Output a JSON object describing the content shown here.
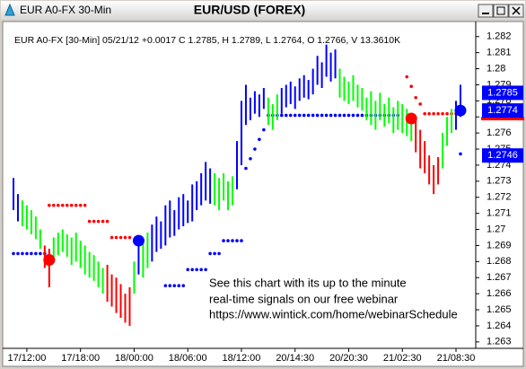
{
  "window_title": "EUR A0-FX 30-Min",
  "chart_data": {
    "type": "range",
    "title": "EUR/USD (FOREX)",
    "subtitle": "EUR A0-FX [30-Min] 05/21/12 +0.0017 C 1.2785, H 1.2789, L 1.2764, O 1.2766, V 13.3610K",
    "annotation": [
      "See this chart with its up to the minute",
      "real-time signals on our free webinar",
      "https://www.wintick.com/home/webinarSchedule"
    ],
    "categories": [
      null,
      null,
      null,
      "17/12:00",
      null,
      null,
      null,
      null,
      null,
      null,
      null,
      null,
      null,
      null,
      null,
      "17/18:00",
      null,
      null,
      null,
      null,
      null,
      null,
      null,
      null,
      null,
      null,
      null,
      "18/00:00",
      null,
      null,
      null,
      null,
      null,
      null,
      null,
      null,
      null,
      null,
      null,
      "18/06:00",
      null,
      null,
      null,
      null,
      null,
      null,
      null,
      null,
      null,
      null,
      null,
      "18/12:00",
      null,
      null,
      null,
      null,
      null,
      null,
      null,
      null,
      null,
      null,
      null,
      "20/14:30",
      null,
      null,
      null,
      null,
      null,
      null,
      null,
      null,
      null,
      null,
      null,
      "20/20:30",
      null,
      null,
      null,
      null,
      null,
      null,
      null,
      null,
      null,
      null,
      null,
      "21/02:30",
      null,
      null,
      null,
      null,
      null,
      null,
      null,
      null,
      null,
      null,
      null,
      "21/08:30",
      null
    ],
    "high": [
      1.2732,
      1.2722,
      1.2718,
      1.2715,
      1.2712,
      1.2708,
      1.27,
      1.269,
      1.2688,
      1.2695,
      1.2698,
      1.27,
      1.2697,
      1.2695,
      1.2698,
      1.2693,
      1.269,
      1.2686,
      1.2684,
      1.268,
      1.2676,
      1.2678,
      1.2672,
      1.267,
      1.2666,
      1.266,
      1.2664,
      1.268,
      1.2696,
      1.2692,
      1.2698,
      1.2703,
      1.2708,
      1.2705,
      1.2715,
      1.2718,
      1.2712,
      1.272,
      1.2722,
      1.2718,
      1.2728,
      1.273,
      1.2735,
      1.2742,
      1.2738,
      1.2735,
      1.2732,
      1.2735,
      1.273,
      1.2733,
      1.2755,
      1.278,
      1.279,
      1.2782,
      1.2786,
      1.2784,
      1.2788,
      1.2782,
      1.2778,
      1.2784,
      1.2788,
      1.279,
      1.2792,
      1.2789,
      1.2794,
      1.2796,
      1.2793,
      1.28,
      1.2808,
      1.2804,
      1.2815,
      1.281,
      1.2812,
      1.28,
      1.2795,
      1.2792,
      1.2796,
      1.279,
      1.2788,
      1.2782,
      1.2786,
      1.278,
      1.2785,
      1.2778,
      1.2782,
      1.2776,
      1.278,
      1.2778,
      1.2775,
      1.2772,
      1.277,
      1.2762,
      1.2755,
      1.2746,
      1.274,
      1.2745,
      1.276,
      1.277,
      1.2775,
      1.278,
      1.279
    ],
    "low": [
      1.2712,
      1.2705,
      1.2702,
      1.27,
      1.2697,
      1.2694,
      1.2688,
      1.2676,
      1.2664,
      1.268,
      1.2684,
      1.2686,
      1.2683,
      1.2678,
      1.268,
      1.2676,
      1.2672,
      1.267,
      1.2668,
      1.2664,
      1.266,
      1.2655,
      1.2652,
      1.2648,
      1.2645,
      1.2642,
      1.264,
      1.266,
      1.2672,
      1.267,
      1.2676,
      1.268,
      1.2686,
      1.2688,
      1.269,
      1.2695,
      1.2696,
      1.27,
      1.2702,
      1.2704,
      1.2705,
      1.2712,
      1.2715,
      1.2718,
      1.2716,
      1.2715,
      1.2712,
      1.2718,
      1.2712,
      1.2715,
      1.2725,
      1.274,
      1.2765,
      1.2768,
      1.2772,
      1.277,
      1.2775,
      1.2765,
      1.2762,
      1.2768,
      1.2772,
      1.2776,
      1.2778,
      1.2775,
      1.278,
      1.2782,
      1.2781,
      1.2784,
      1.279,
      1.2788,
      1.2795,
      1.2792,
      1.2794,
      1.2782,
      1.278,
      1.2778,
      1.278,
      1.2776,
      1.2774,
      1.2768,
      1.2765,
      1.2762,
      1.2768,
      1.2764,
      1.2766,
      1.276,
      1.2762,
      1.276,
      1.2758,
      1.2755,
      1.2748,
      1.2738,
      1.2735,
      1.2728,
      1.2722,
      1.2728,
      1.2738,
      1.2752,
      1.276,
      1.2762,
      1.277
    ],
    "colors": [
      "#00f",
      "#00f",
      "#0f0",
      "#0f0",
      "#0f0",
      "#0f0",
      "#0f0",
      "#f00",
      "#f00",
      "#0f0",
      "#0f0",
      "#0f0",
      "#0f0",
      "#0f0",
      "#0f0",
      "#0f0",
      "#0f0",
      "#0f0",
      "#0f0",
      "#0f0",
      "#0f0",
      "#f00",
      "#f00",
      "#f00",
      "#f00",
      "#f00",
      "#f00",
      "#0f0",
      "#00f",
      "#0f0",
      "#0f0",
      "#00f",
      "#00f",
      "#00f",
      "#00f",
      "#00f",
      "#00f",
      "#00f",
      "#00f",
      "#00f",
      "#00f",
      "#00f",
      "#00f",
      "#00f",
      "#00f",
      "#0f0",
      "#0f0",
      "#0f0",
      "#0f0",
      "#0f0",
      "#00f",
      "#00f",
      "#00f",
      "#00f",
      "#00f",
      "#00f",
      "#00f",
      "#0f0",
      "#0f0",
      "#0f0",
      "#00f",
      "#00f",
      "#00f",
      "#00f",
      "#00f",
      "#00f",
      "#00f",
      "#00f",
      "#00f",
      "#00f",
      "#00f",
      "#00f",
      "#00f",
      "#0f0",
      "#0f0",
      "#0f0",
      "#0f0",
      "#0f0",
      "#0f0",
      "#0f0",
      "#0f0",
      "#0f0",
      "#0f0",
      "#0f0",
      "#0f0",
      "#0f0",
      "#0f0",
      "#0f0",
      "#0f0",
      "#0f0",
      "#f00",
      "#f00",
      "#f00",
      "#f00",
      "#f00",
      "#f00",
      "#0f0",
      "#0f0",
      "#0f0",
      "#00f",
      "#00f"
    ],
    "stops": [
      {
        "color": "#0000ff",
        "values": [
          1.2685,
          1.2685,
          1.2685,
          1.2685,
          1.2685,
          1.2685,
          1.2685,
          1.2685,
          null,
          null,
          null,
          null,
          null,
          null,
          null,
          null,
          null,
          null,
          null,
          null,
          null,
          null,
          null,
          null,
          null,
          null,
          null,
          null,
          null,
          null,
          null,
          null,
          null,
          null,
          1.2665,
          1.2665,
          1.2665,
          1.2665,
          1.2665,
          1.2675,
          1.2675,
          1.2675,
          1.2675,
          1.2675,
          1.2685,
          1.2685,
          1.2685,
          1.2693,
          1.2693,
          1.2693,
          1.2693,
          1.2693,
          1.2738,
          1.2744,
          1.275,
          1.2756,
          1.2762,
          1.2771,
          1.2771,
          1.2771,
          1.2771,
          1.2771,
          1.2771,
          1.2771,
          1.2771,
          1.2771,
          1.2771,
          1.2771,
          1.2771,
          1.2771,
          1.2771,
          1.2771,
          1.2771,
          1.2771,
          1.2771,
          1.2771,
          1.2771,
          1.2771,
          1.2771,
          1.2771,
          1.2771,
          1.2771,
          1.2771,
          1.2771,
          1.2771,
          1.2771,
          1.2771,
          null,
          null,
          null,
          null,
          null,
          null,
          null,
          null,
          null,
          null,
          null,
          null,
          null,
          1.2747
        ]
      },
      {
        "color": "#ff0000",
        "values": [
          null,
          null,
          null,
          null,
          null,
          null,
          null,
          null,
          1.2715,
          1.2715,
          1.2715,
          1.2715,
          1.2715,
          1.2715,
          1.2715,
          1.2715,
          1.2715,
          1.2705,
          1.2705,
          1.2705,
          1.2705,
          1.2705,
          1.2695,
          1.2695,
          1.2695,
          1.2695,
          1.2695,
          null,
          null,
          null,
          null,
          null,
          null,
          null,
          null,
          null,
          null,
          null,
          null,
          null,
          null,
          null,
          null,
          null,
          null,
          null,
          null,
          null,
          null,
          null,
          null,
          null,
          null,
          null,
          null,
          null,
          null,
          null,
          null,
          null,
          null,
          null,
          null,
          null,
          null,
          null,
          null,
          null,
          null,
          null,
          null,
          null,
          null,
          null,
          null,
          null,
          null,
          null,
          null,
          null,
          null,
          null,
          null,
          null,
          null,
          null,
          null,
          null,
          1.2795,
          1.2789,
          1.2782,
          1.2778,
          1.2772,
          1.2772,
          1.2772,
          1.2772,
          1.2772,
          1.2772,
          1.2772,
          1.2772,
          null
        ]
      }
    ],
    "signals": [
      {
        "color": "#ff0000",
        "x": [
          8,
          89
        ],
        "values": [
          1.2681,
          1.2769
        ]
      },
      {
        "color": "#0000ff",
        "x": [
          28,
          100
        ],
        "values": [
          1.2693,
          1.2774
        ]
      }
    ],
    "price_labels": [
      {
        "value": 1.2785,
        "color": "#0000ff"
      },
      {
        "value": 1.2774,
        "color": "#0000ff"
      },
      {
        "value": 1.2746,
        "color": "#0000ff"
      }
    ],
    "price_markers": [
      {
        "value": 1.2769,
        "color": "#ff0000"
      }
    ],
    "ylim": [
      1.2626,
      1.2826
    ],
    "yticks": [
      1.263,
      1.264,
      1.265,
      1.266,
      1.267,
      1.268,
      1.269,
      1.27,
      1.271,
      1.272,
      1.273,
      1.274,
      1.275,
      1.276,
      1.277,
      1.278,
      1.279,
      1.28,
      1.281,
      1.282
    ]
  }
}
